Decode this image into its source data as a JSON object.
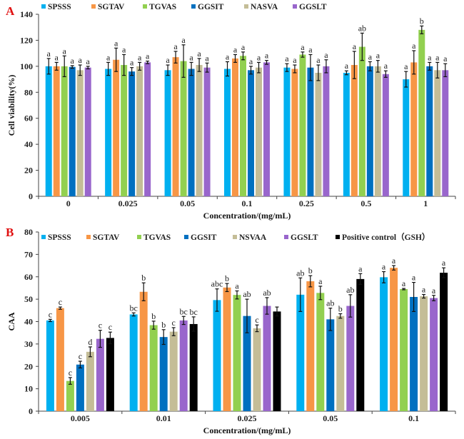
{
  "chart_data": [
    {
      "type": "bar",
      "panel_label": "A",
      "title": "",
      "xlabel": "Concentration/(mg/mL)",
      "ylabel": "Cell viability(%)",
      "ylim": [
        0,
        140
      ],
      "yticks": [
        0,
        20,
        40,
        60,
        80,
        100,
        120,
        140
      ],
      "categories": [
        "0",
        "0.025",
        "0.05",
        "0.1",
        "0.25",
        "0.5",
        "1"
      ],
      "legend_position": "top",
      "series": [
        {
          "name": "SPSSS",
          "color": "#00B0F0",
          "values": [
            100,
            98,
            97,
            98,
            99,
            95,
            90
          ],
          "errors": [
            6,
            5,
            4,
            5.5,
            3,
            1.5,
            6
          ],
          "labels": [
            "a",
            "a",
            "a",
            "a",
            "a",
            "a",
            "a"
          ]
        },
        {
          "name": "SGTAV",
          "color": "#F79646",
          "values": [
            100,
            105,
            107,
            106,
            98,
            101,
            103
          ],
          "errors": [
            3,
            9,
            4.5,
            3,
            3,
            10.5,
            9
          ],
          "labels": [
            "a",
            "a",
            "a",
            "a",
            "a",
            "a",
            "a"
          ]
        },
        {
          "name": "TGVAS",
          "color": "#92D050",
          "values": [
            100,
            101,
            104,
            108,
            109,
            115,
            128
          ],
          "errors": [
            8,
            8,
            12.5,
            3,
            2,
            10.5,
            3
          ],
          "labels": [
            "a",
            "a",
            "a",
            "a",
            "a",
            "ab",
            "b"
          ]
        },
        {
          "name": "GGSIT",
          "color": "#0070C0",
          "values": [
            99.5,
            96,
            98,
            97,
            99,
            100,
            100
          ],
          "errors": [
            1,
            3,
            5,
            3,
            10,
            3.5,
            3
          ],
          "labels": [
            "a",
            "a",
            "a",
            "a",
            "a",
            "a",
            "a"
          ]
        },
        {
          "name": "NASVA",
          "color": "#C4BD97",
          "values": [
            97,
            100,
            101,
            99,
            95,
            100,
            97
          ],
          "errors": [
            4,
            3,
            5,
            4,
            6,
            4.5,
            6
          ],
          "labels": [
            "a",
            "a",
            "a",
            "a",
            "a",
            "a",
            "a"
          ]
        },
        {
          "name": "GGSLT",
          "color": "#9966CC",
          "values": [
            99,
            103,
            99,
            103,
            100,
            94,
            97
          ],
          "errors": [
            1,
            1,
            3.5,
            1.5,
            5,
            2.5,
            5
          ],
          "labels": [
            "a",
            "a",
            "a",
            "a",
            "a",
            "a",
            "a"
          ]
        }
      ]
    },
    {
      "type": "bar",
      "panel_label": "B",
      "title": "",
      "xlabel": "Concentration/(mg/mL)",
      "ylabel": "CAA",
      "ylim": [
        0,
        80
      ],
      "yticks": [
        0,
        10,
        20,
        30,
        40,
        50,
        60,
        70,
        80
      ],
      "categories": [
        "0.005",
        "0.01",
        "0.025",
        "0.05",
        "0.1"
      ],
      "legend_position": "top",
      "series": [
        {
          "name": "SPSSS",
          "color": "#00B0F0",
          "values": [
            40.5,
            43.2,
            49.6,
            52,
            59.8
          ],
          "errors": [
            0.5,
            0.7,
            5,
            7.5,
            2.5
          ],
          "labels": [
            "c",
            "bc",
            "abc",
            "ab",
            "a"
          ]
        },
        {
          "name": "SGTAV",
          "color": "#F79646",
          "values": [
            46,
            53.3,
            55.2,
            58,
            64
          ],
          "errors": [
            0.5,
            4,
            1.8,
            2.5,
            1
          ],
          "labels": [
            "c",
            "b",
            "b",
            "b",
            "a"
          ]
        },
        {
          "name": "TGVAS",
          "color": "#92D050",
          "values": [
            13.5,
            38.4,
            51.9,
            52.8,
            54.5
          ],
          "errors": [
            1.5,
            1.8,
            1.8,
            3,
            0.3
          ],
          "labels": [
            "c",
            "b",
            "a",
            "a",
            "a"
          ]
        },
        {
          "name": "GGSIT",
          "color": "#0070C0",
          "values": [
            20.8,
            33.1,
            42.5,
            41,
            51
          ],
          "errors": [
            1.5,
            3.3,
            7.5,
            5,
            6.5
          ],
          "labels": [
            "c",
            "b",
            "ab",
            "ab",
            "a"
          ]
        },
        {
          "name": "NSVAA",
          "color": "#C4BD97",
          "values": [
            26.5,
            35.5,
            37,
            42.5,
            51.3
          ],
          "errors": [
            2.2,
            1.8,
            1.5,
            1,
            0.8
          ],
          "labels": [
            "d",
            "c",
            "c",
            "b",
            "a"
          ]
        },
        {
          "name": "GGSLT",
          "color": "#9966CC",
          "values": [
            32.3,
            40.5,
            47,
            47,
            50.5
          ],
          "errors": [
            3.8,
            1.8,
            3.7,
            5,
            1.2
          ],
          "labels": [
            "c",
            "bc",
            "ab",
            "ab",
            "a"
          ]
        },
        {
          "name": "Positive control（GSH）",
          "color": "#000000",
          "values": [
            32.7,
            38.9,
            44.5,
            59,
            61.8
          ],
          "errors": [
            2.6,
            3.2,
            2,
            2.4,
            2.2
          ],
          "labels": [
            "c",
            "bc",
            "",
            "a",
            "a"
          ]
        }
      ]
    }
  ]
}
